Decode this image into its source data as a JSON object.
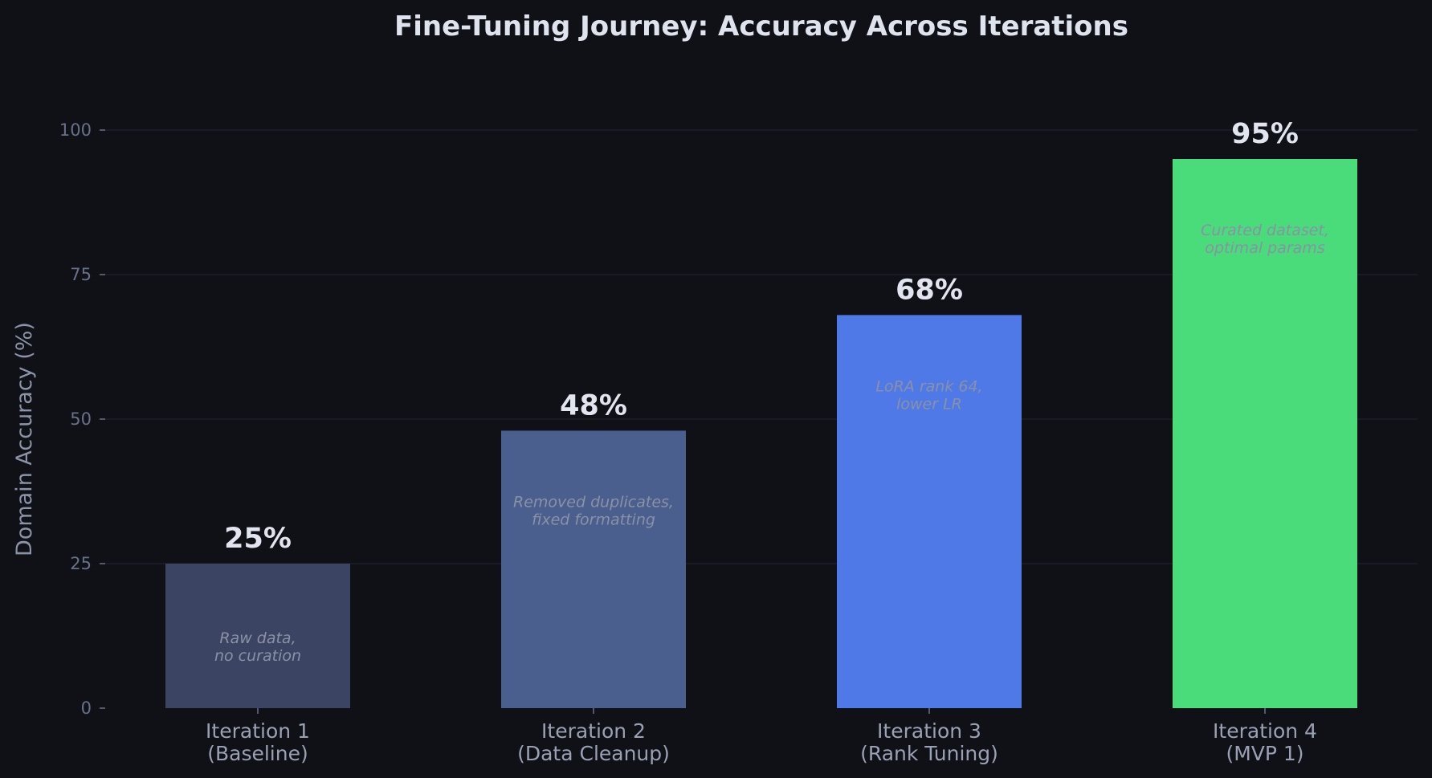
{
  "chart_data": {
    "type": "bar",
    "title": "Fine-Tuning Journey: Accuracy Across Iterations",
    "xlabel": "",
    "ylabel": "Domain Accuracy (%)",
    "ylim": [
      0,
      105
    ],
    "yticks": [
      0,
      25,
      50,
      75,
      100
    ],
    "grid": true,
    "categories": [
      [
        "Iteration 1",
        "(Baseline)"
      ],
      [
        "Iteration 2",
        "(Data Cleanup)"
      ],
      [
        "Iteration 3",
        "(Rank Tuning)"
      ],
      [
        "Iteration 4",
        "(MVP 1)"
      ]
    ],
    "values": [
      25,
      48,
      68,
      95
    ],
    "value_labels": [
      "25%",
      "48%",
      "68%",
      "95%"
    ],
    "annotations": [
      [
        "Raw data,",
        "no curation"
      ],
      [
        "Removed duplicates,",
        "fixed formatting"
      ],
      [
        "LoRA rank 64,",
        "lower LR"
      ],
      [
        "Curated dataset,",
        "optimal params"
      ]
    ],
    "colors": [
      "#3b4563",
      "#4a5f8e",
      "#4f79e6",
      "#4adc7b"
    ],
    "annotation_color": "#8a91a6",
    "background": "#0f1117",
    "grid_color": "#1e2130"
  }
}
